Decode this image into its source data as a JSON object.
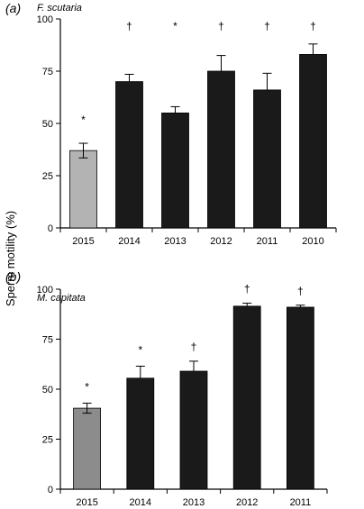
{
  "ylabel": "Sperm motility (%)",
  "colors": {
    "bar_2015_a": "#b3b3b3",
    "bar_2015_b": "#8c8c8c",
    "bar": "#1a1a1a",
    "axis": "#000000"
  },
  "chart_data": [
    {
      "type": "bar",
      "panel_label": "(a)",
      "title": "F. scutaria",
      "categories": [
        "2015",
        "2014",
        "2013",
        "2012",
        "2011",
        "2010"
      ],
      "values": [
        37,
        70,
        55,
        75,
        66,
        83
      ],
      "errors": [
        3.5,
        3.5,
        3,
        7.5,
        8,
        5
      ],
      "markers": [
        "*",
        "†",
        "*",
        "†",
        "†",
        "†"
      ],
      "ylim": [
        0,
        100
      ],
      "yticks": [
        "0",
        "25",
        "50",
        "75",
        "100"
      ]
    },
    {
      "type": "bar",
      "panel_label": "(b)",
      "title": "M. capitata",
      "categories": [
        "2015",
        "2014",
        "2013",
        "2012",
        "2011"
      ],
      "values": [
        40.5,
        55.5,
        59,
        91.5,
        91
      ],
      "errors": [
        2.5,
        6,
        5,
        1.5,
        1
      ],
      "markers": [
        "*",
        "*",
        "†",
        "†",
        "†"
      ],
      "ylim": [
        0,
        100
      ],
      "yticks": [
        "0",
        "25",
        "50",
        "75",
        "100"
      ]
    }
  ]
}
